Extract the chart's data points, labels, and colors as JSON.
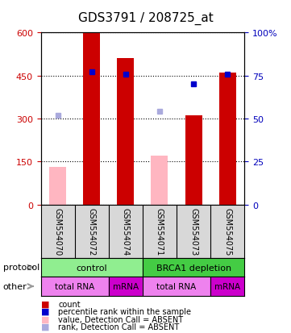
{
  "title": "GDS3791 / 208725_at",
  "samples": [
    "GSM554070",
    "GSM554072",
    "GSM554074",
    "GSM554071",
    "GSM554073",
    "GSM554075"
  ],
  "counts": [
    null,
    600,
    510,
    null,
    310,
    460
  ],
  "counts_absent": [
    130,
    null,
    null,
    170,
    null,
    null
  ],
  "percentile_ranks": [
    null,
    77,
    76,
    null,
    70,
    76
  ],
  "percentile_ranks_absent": [
    52,
    null,
    null,
    54,
    null,
    null
  ],
  "left_ylim": [
    0,
    600
  ],
  "right_ylim": [
    0,
    100
  ],
  "left_yticks": [
    0,
    150,
    300,
    450,
    600
  ],
  "right_yticks": [
    0,
    25,
    50,
    75,
    100
  ],
  "bar_color_present": "#CC0000",
  "bar_color_absent": "#FFB6C1",
  "dot_color_present": "#0000CC",
  "dot_color_absent": "#AAAADD",
  "left_label_color": "#CC0000",
  "right_label_color": "#0000BB",
  "bg_color": "#D8D8D8",
  "protocol_color_control": "#90EE90",
  "protocol_color_brca1": "#44CC44",
  "other_color_totalrna": "#EE82EE",
  "other_color_mrna": "#CC00CC",
  "arrow_color": "#999999"
}
